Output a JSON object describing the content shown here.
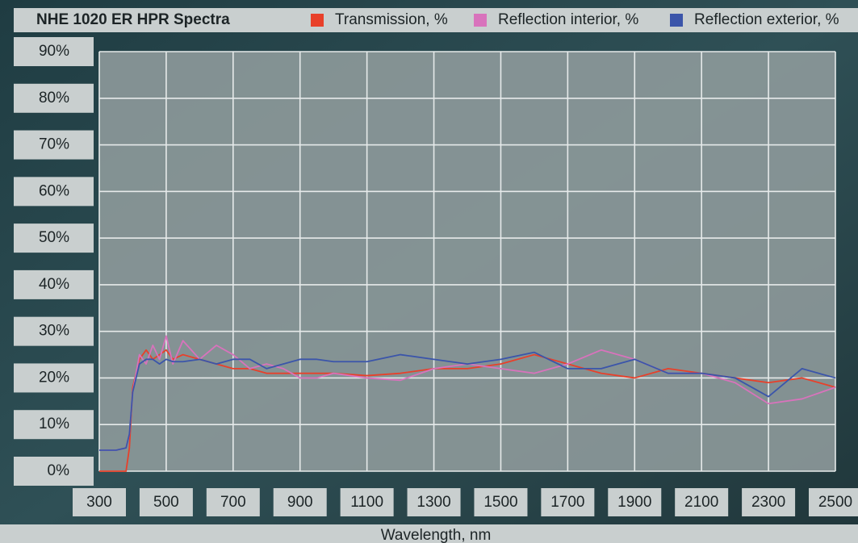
{
  "chart_data": {
    "type": "line",
    "title": "NHE 1020 ER HPR Spectra",
    "x_label": "Wavelength, nm",
    "x": [
      300,
      350,
      380,
      390,
      400,
      420,
      440,
      460,
      480,
      500,
      520,
      550,
      600,
      650,
      700,
      750,
      800,
      850,
      900,
      950,
      1000,
      1100,
      1200,
      1300,
      1400,
      1500,
      1600,
      1700,
      1800,
      1900,
      2000,
      2100,
      2200,
      2300,
      2400,
      2500
    ],
    "series": [
      {
        "name": "Transmission, %",
        "color": "#e8402a",
        "values": [
          0,
          0,
          0,
          5,
          18,
          24,
          26,
          24,
          25,
          26,
          24,
          25,
          24,
          23,
          22,
          22,
          21,
          21,
          21,
          21,
          21,
          20.5,
          21,
          22,
          22,
          23,
          25,
          23,
          21,
          20,
          22,
          21,
          20,
          19,
          20,
          18
        ]
      },
      {
        "name": "Reflection interior, %",
        "color": "#d873bc",
        "values": [
          4.5,
          4.5,
          5,
          8,
          17,
          25,
          23,
          27,
          24,
          29,
          23,
          28,
          24,
          27,
          25,
          22,
          23,
          22,
          20,
          20,
          21,
          20,
          19.5,
          22,
          23,
          22,
          21,
          23,
          26,
          24,
          21,
          21,
          19,
          14.5,
          15.5,
          18
        ]
      },
      {
        "name": "Reflection exterior, %",
        "color": "#3b55aa",
        "values": [
          4.5,
          4.5,
          5,
          8,
          17,
          23,
          24,
          24,
          23,
          24,
          23.5,
          23.5,
          24,
          23,
          24,
          24,
          22,
          23,
          24,
          24,
          23.5,
          23.5,
          25,
          24,
          23,
          24,
          25.5,
          22,
          22,
          24,
          21,
          21,
          20,
          16,
          22,
          20
        ]
      }
    ],
    "xlim": [
      300,
      2500
    ],
    "xticks": [
      300,
      500,
      700,
      900,
      1100,
      1300,
      1500,
      1700,
      1900,
      2100,
      2300,
      2500
    ],
    "ylim": [
      0,
      90
    ],
    "yticks": [
      {
        "value": 0,
        "label": "0%"
      },
      {
        "value": 10,
        "label": "10%"
      },
      {
        "value": 20,
        "label": "20%"
      },
      {
        "value": 30,
        "label": "30%"
      },
      {
        "value": 40,
        "label": "40%"
      },
      {
        "value": 50,
        "label": "50%"
      },
      {
        "value": 60,
        "label": "60%"
      },
      {
        "value": 70,
        "label": "70%"
      },
      {
        "value": 80,
        "label": "80%"
      },
      {
        "value": 90,
        "label": "90%"
      }
    ],
    "grid": true
  }
}
